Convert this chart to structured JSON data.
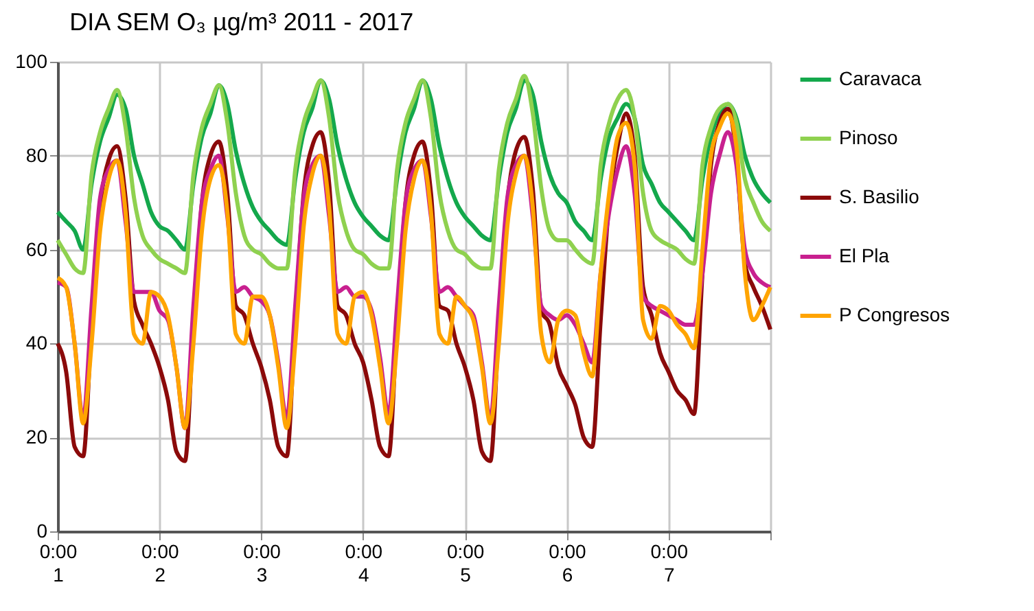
{
  "chart_data": {
    "type": "line",
    "title": "DIA SEM  O₃ µg/m³   2011 - 2017",
    "categories": [
      "0:00\n1",
      null,
      null,
      null,
      null,
      null,
      null,
      null,
      null,
      null,
      null,
      null,
      "0:00\n2",
      null,
      null,
      null,
      null,
      null,
      null,
      null,
      null,
      null,
      null,
      null,
      "0:00\n3",
      null,
      null,
      null,
      null,
      null,
      null,
      null,
      null,
      null,
      null,
      null,
      "0:00\n4",
      null,
      null,
      null,
      null,
      null,
      null,
      null,
      null,
      null,
      null,
      null,
      "0:00\n5",
      null,
      null,
      null,
      null,
      null,
      null,
      null,
      null,
      null,
      null,
      null,
      "0:00\n6",
      null,
      null,
      null,
      null,
      null,
      null,
      null,
      null,
      null,
      null,
      null,
      "0:00\n7",
      null,
      null,
      null,
      null,
      null,
      null,
      null,
      null,
      null,
      null,
      null,
      null
    ],
    "series": [
      {
        "name": "Caravaca",
        "color": "#14a84c",
        "values": [
          68,
          66,
          64,
          60,
          74,
          83,
          88,
          93,
          90,
          80,
          74,
          68,
          65,
          64,
          62,
          60,
          74,
          84,
          89,
          95,
          91,
          81,
          74,
          69,
          66,
          64,
          62,
          61,
          75,
          85,
          90,
          96,
          92,
          82,
          75,
          70,
          67,
          65,
          63,
          62,
          75,
          85,
          90,
          96,
          92,
          82,
          75,
          70,
          67,
          65,
          63,
          62,
          75,
          85,
          90,
          96,
          93,
          83,
          76,
          72,
          70,
          66,
          64,
          62,
          75,
          84,
          88,
          91,
          88,
          78,
          74,
          70,
          68,
          66,
          64,
          62,
          75,
          84,
          89,
          91,
          88,
          80,
          75,
          72,
          70
        ]
      },
      {
        "name": "Pinoso",
        "color": "#8fd14f",
        "values": [
          62,
          59,
          56,
          55,
          76,
          85,
          90,
          94,
          86,
          71,
          63,
          60,
          58,
          57,
          56,
          55,
          76,
          86,
          91,
          95,
          87,
          72,
          63,
          60,
          59,
          57,
          56,
          56,
          77,
          87,
          92,
          96,
          88,
          72,
          64,
          60,
          59,
          57,
          56,
          56,
          77,
          87,
          92,
          96,
          88,
          72,
          64,
          60,
          59,
          57,
          56,
          56,
          77,
          87,
          92,
          97,
          89,
          73,
          64,
          62,
          62,
          60,
          58,
          57,
          78,
          87,
          92,
          94,
          88,
          72,
          64,
          62,
          61,
          60,
          58,
          57,
          78,
          86,
          90,
          91,
          87,
          75,
          70,
          66,
          64
        ]
      },
      {
        "name": "S. Basilio",
        "color": "#8b0a0a",
        "values": [
          40,
          34,
          18,
          16,
          44,
          69,
          79,
          82,
          71,
          49,
          44,
          40,
          35,
          28,
          17,
          15,
          44,
          70,
          80,
          83,
          72,
          48,
          46,
          40,
          35,
          28,
          18,
          16,
          45,
          72,
          82,
          85,
          74,
          48,
          46,
          40,
          36,
          28,
          18,
          16,
          44,
          70,
          80,
          83,
          72,
          48,
          47,
          40,
          35,
          28,
          17,
          15,
          44,
          70,
          81,
          84,
          73,
          47,
          44,
          35,
          31,
          27,
          20,
          18,
          45,
          70,
          82,
          89,
          80,
          52,
          46,
          38,
          34,
          30,
          28,
          25,
          55,
          78,
          87,
          90,
          80,
          57,
          52,
          48,
          43
        ]
      },
      {
        "name": "El Pla",
        "color": "#c8208f",
        "values": [
          53,
          52,
          40,
          24,
          48,
          71,
          77,
          79,
          66,
          51,
          51,
          51,
          47,
          45,
          35,
          22,
          48,
          70,
          77,
          80,
          67,
          51,
          52,
          50,
          49,
          46,
          36,
          24,
          48,
          71,
          78,
          80,
          67,
          51,
          52,
          50,
          50,
          47,
          37,
          25,
          48,
          70,
          77,
          79,
          67,
          51,
          52,
          50,
          48,
          46,
          36,
          24,
          48,
          71,
          78,
          80,
          67,
          48,
          46,
          45,
          46,
          44,
          40,
          36,
          55,
          68,
          77,
          82,
          72,
          50,
          48,
          47,
          46,
          45,
          44,
          44,
          55,
          72,
          80,
          85,
          78,
          60,
          55,
          53,
          52
        ]
      },
      {
        "name": "P Congresos",
        "color": "#ffa400",
        "values": [
          54,
          52,
          40,
          23,
          40,
          64,
          75,
          79,
          68,
          42,
          40,
          51,
          50,
          46,
          35,
          22,
          40,
          64,
          75,
          78,
          68,
          42,
          40,
          50,
          50,
          46,
          35,
          22,
          40,
          65,
          76,
          80,
          69,
          42,
          40,
          50,
          51,
          46,
          35,
          23,
          40,
          64,
          75,
          79,
          68,
          42,
          40,
          50,
          48,
          45,
          35,
          23,
          40,
          65,
          76,
          80,
          69,
          42,
          36,
          45,
          47,
          46,
          38,
          33,
          55,
          72,
          84,
          87,
          78,
          45,
          41,
          48,
          47,
          44,
          42,
          39,
          60,
          80,
          86,
          89,
          82,
          55,
          45,
          48,
          52
        ]
      }
    ],
    "ylim": [
      0,
      100
    ],
    "yticks": [
      0,
      20,
      40,
      60,
      80,
      100
    ],
    "grid": true,
    "legend": "right",
    "marker": "none",
    "line_style": "solid"
  }
}
